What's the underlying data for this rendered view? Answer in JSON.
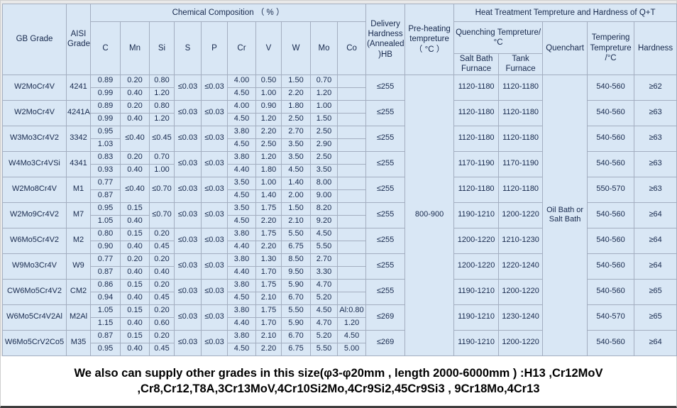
{
  "colors": {
    "cell_bg": "#d9e7f5",
    "grid_border": "#a3aec0",
    "table_text": "#17294d",
    "footer_bg": "#ffffff",
    "footer_text": "#000000"
  },
  "header": {
    "gb_grade": "GB Grade",
    "aisi_grade": "AISI Grade",
    "chemical_composition": "Chemical Composition （ % ）",
    "elements": [
      "C",
      "Mn",
      "Si",
      "S",
      "P",
      "Cr",
      "V",
      "W",
      "Mo",
      "Co"
    ],
    "delivery_hardness": "Delivery Hardness (Annealed )HB",
    "preheating": "Pre-heating tempreture （ °C ）",
    "heat_treatment": "Heat Treatment Tempreture and Hardness of Q+T",
    "quenching": "Quenching Tempreture/°C",
    "salt_bath_furnace": "Salt Bath Furnace",
    "tank_furnace": "Tank Furnace",
    "quenchart": "Quenchart",
    "tempering": "Tempering Tempreture /°C",
    "hardness": "Hardness"
  },
  "preheating_value": "800-900",
  "quenchart_value": "Oil Bath or Salt Bath",
  "rows": [
    {
      "gb": "W2MoCr4V",
      "aisi": "4241",
      "comp": {
        "C": [
          "0.89",
          "0.99"
        ],
        "Mn": [
          "0.20",
          "0.40"
        ],
        "Si": [
          "0.80",
          "1.20"
        ],
        "S": "≤0.03",
        "P": "≤0.03",
        "Cr": [
          "4.00",
          "4.50"
        ],
        "V": [
          "0.50",
          "1.00"
        ],
        "W": [
          "1.50",
          "2.20"
        ],
        "Mo": [
          "0.70",
          "1.20"
        ],
        "Co": [
          "",
          ""
        ]
      },
      "delivery": "≤255",
      "salt_bath": "1120-1180",
      "tank": "1120-1180",
      "tempering": "540-560",
      "hardness": "≥62"
    },
    {
      "gb": "W2MoCr4V",
      "aisi": "4241A",
      "comp": {
        "C": [
          "0.89",
          "0.99"
        ],
        "Mn": [
          "0.20",
          "0.40"
        ],
        "Si": [
          "0.80",
          "1.20"
        ],
        "S": "≤0.03",
        "P": "≤0.03",
        "Cr": [
          "4.00",
          "4.50"
        ],
        "V": [
          "0.90",
          "1.20"
        ],
        "W": [
          "1.80",
          "2.50"
        ],
        "Mo": [
          "1.00",
          "1.50"
        ],
        "Co": [
          "",
          ""
        ]
      },
      "delivery": "≤255",
      "salt_bath": "1120-1180",
      "tank": "1120-1180",
      "tempering": "540-560",
      "hardness": "≥63"
    },
    {
      "gb": "W3Mo3Cr4V2",
      "aisi": "3342",
      "comp": {
        "C": [
          "0.95",
          "1.03"
        ],
        "Mn": "≤0.40",
        "Si": "≤0.45",
        "S": "≤0.03",
        "P": "≤0.03",
        "Cr": [
          "3.80",
          "4.50"
        ],
        "V": [
          "2.20",
          "2.50"
        ],
        "W": [
          "2.70",
          "3.50"
        ],
        "Mo": [
          "2.50",
          "2.90"
        ],
        "Co": [
          "",
          ""
        ]
      },
      "delivery": "≤255",
      "salt_bath": "1120-1180",
      "tank": "1120-1180",
      "tempering": "540-560",
      "hardness": "≥63"
    },
    {
      "gb": "W4Mo3Cr4VSi",
      "aisi": "4341",
      "comp": {
        "C": [
          "0.83",
          "0.93"
        ],
        "Mn": [
          "0.20",
          "0.40"
        ],
        "Si": [
          "0.70",
          "1.00"
        ],
        "S": "≤0.03",
        "P": "≤0.03",
        "Cr": [
          "3.80",
          "4.40"
        ],
        "V": [
          "1.20",
          "1.80"
        ],
        "W": [
          "3.50",
          "4.50"
        ],
        "Mo": [
          "2.50",
          "3.50"
        ],
        "Co": [
          "",
          ""
        ]
      },
      "delivery": "≤255",
      "salt_bath": "1170-1190",
      "tank": "1170-1190",
      "tempering": "540-560",
      "hardness": "≥63"
    },
    {
      "gb": "W2Mo8Cr4V",
      "aisi": "M1",
      "comp": {
        "C": [
          "0.77",
          "0.87"
        ],
        "Mn": "≤0.40",
        "Si": "≤0.70",
        "S": "≤0.03",
        "P": "≤0.03",
        "Cr": [
          "3.50",
          "4.50"
        ],
        "V": [
          "1.00",
          "1.40"
        ],
        "W": [
          "1.40",
          "2.00"
        ],
        "Mo": [
          "8.00",
          "9.00"
        ],
        "Co": [
          "",
          ""
        ]
      },
      "delivery": "≤255",
      "salt_bath": "1120-1180",
      "tank": "1120-1180",
      "tempering": "550-570",
      "hardness": "≥63"
    },
    {
      "gb": "W2Mo9Cr4V2",
      "aisi": "M7",
      "comp": {
        "C": [
          "0.95",
          "1.05"
        ],
        "Mn": [
          "0.15",
          "0.40"
        ],
        "Si": "≤0.70",
        "S": "≤0.03",
        "P": "≤0.03",
        "Cr": [
          "3.50",
          "4.50"
        ],
        "V": [
          "1.75",
          "2.20"
        ],
        "W": [
          "1.50",
          "2.10"
        ],
        "Mo": [
          "8.20",
          "9.20"
        ],
        "Co": [
          "",
          ""
        ]
      },
      "delivery": "≤255",
      "salt_bath": "1190-1210",
      "tank": "1200-1220",
      "tempering": "540-560",
      "hardness": "≥64"
    },
    {
      "gb": "W6Mo5Cr4V2",
      "aisi": "M2",
      "comp": {
        "C": [
          "0.80",
          "0.90"
        ],
        "Mn": [
          "0.15",
          "0.40"
        ],
        "Si": [
          "0.20",
          "0.45"
        ],
        "S": "≤0.03",
        "P": "≤0.03",
        "Cr": [
          "3.80",
          "4.40"
        ],
        "V": [
          "1.75",
          "2.20"
        ],
        "W": [
          "5.50",
          "6.75"
        ],
        "Mo": [
          "4.50",
          "5.50"
        ],
        "Co": [
          "",
          ""
        ]
      },
      "delivery": "≤255",
      "salt_bath": "1200-1220",
      "tank": "1210-1230",
      "tempering": "540-560",
      "hardness": "≥64"
    },
    {
      "gb": "W9Mo3Cr4V",
      "aisi": "W9",
      "comp": {
        "C": [
          "0.77",
          "0.87"
        ],
        "Mn": [
          "0.20",
          "0.40"
        ],
        "Si": [
          "0.20",
          "0.40"
        ],
        "S": "≤0.03",
        "P": "≤0.03",
        "Cr": [
          "3.80",
          "4.40"
        ],
        "V": [
          "1.30",
          "1.70"
        ],
        "W": [
          "8.50",
          "9.50"
        ],
        "Mo": [
          "2.70",
          "3.30"
        ],
        "Co": [
          "",
          ""
        ]
      },
      "delivery": "≤255",
      "salt_bath": "1200-1220",
      "tank": "1220-1240",
      "tempering": "540-560",
      "hardness": "≥64"
    },
    {
      "gb": "CW6Mo5Cr4V2",
      "aisi": "CM2",
      "comp": {
        "C": [
          "0.86",
          "0.94"
        ],
        "Mn": [
          "0.15",
          "0.40"
        ],
        "Si": [
          "0.20",
          "0.45"
        ],
        "S": "≤0.03",
        "P": "≤0.03",
        "Cr": [
          "3.80",
          "4.50"
        ],
        "V": [
          "1.75",
          "2.10"
        ],
        "W": [
          "5.90",
          "6.70"
        ],
        "Mo": [
          "4.70",
          "5.20"
        ],
        "Co": [
          "",
          ""
        ]
      },
      "delivery": "≤255",
      "salt_bath": "1190-1210",
      "tank": "1200-1220",
      "tempering": "540-560",
      "hardness": "≥65"
    },
    {
      "gb": "W6Mo5Cr4V2Al",
      "aisi": "M2Al",
      "comp": {
        "C": [
          "1.05",
          "1.15"
        ],
        "Mn": [
          "0.15",
          "0.40"
        ],
        "Si": [
          "0.20",
          "0.60"
        ],
        "S": "≤0.03",
        "P": "≤0.03",
        "Cr": [
          "3.80",
          "4.40"
        ],
        "V": [
          "1.75",
          "1.70"
        ],
        "W": [
          "5.50",
          "5.90"
        ],
        "Mo": [
          "4.50",
          "4.70"
        ],
        "Co": [
          "Al:0.80",
          "1.20"
        ]
      },
      "delivery": "≤269",
      "salt_bath": "1190-1210",
      "tank": "1230-1240",
      "tempering": "540-570",
      "hardness": "≥65"
    },
    {
      "gb": "W6Mo5CrV2Co5",
      "aisi": "M35",
      "comp": {
        "C": [
          "0.87",
          "0.95"
        ],
        "Mn": [
          "0.15",
          "0.40"
        ],
        "Si": [
          "0.20",
          "0.45"
        ],
        "S": "≤0.03",
        "P": "≤0.03",
        "Cr": [
          "3.80",
          "4.50"
        ],
        "V": [
          "2.10",
          "2.20"
        ],
        "W": [
          "6.70",
          "6.75"
        ],
        "Mo": [
          "5.20",
          "5.50"
        ],
        "Co": [
          "4.50",
          "5.00"
        ]
      },
      "delivery": "≤269",
      "salt_bath": "1190-1210",
      "tank": "1200-1220",
      "tempering": "540-560",
      "hardness": "≥64"
    }
  ],
  "footer": {
    "line1": "We also  can supply other grades in this size(φ3-φ20mm , length 2000-6000mm )  :H13 ,Cr12MoV",
    "line2": ",Cr8,Cr12,T8A,3Cr13MoV,4Cr10Si2Mo,4Cr9Si2,45Cr9Si3 , 9Cr18Mo,4Cr13"
  }
}
